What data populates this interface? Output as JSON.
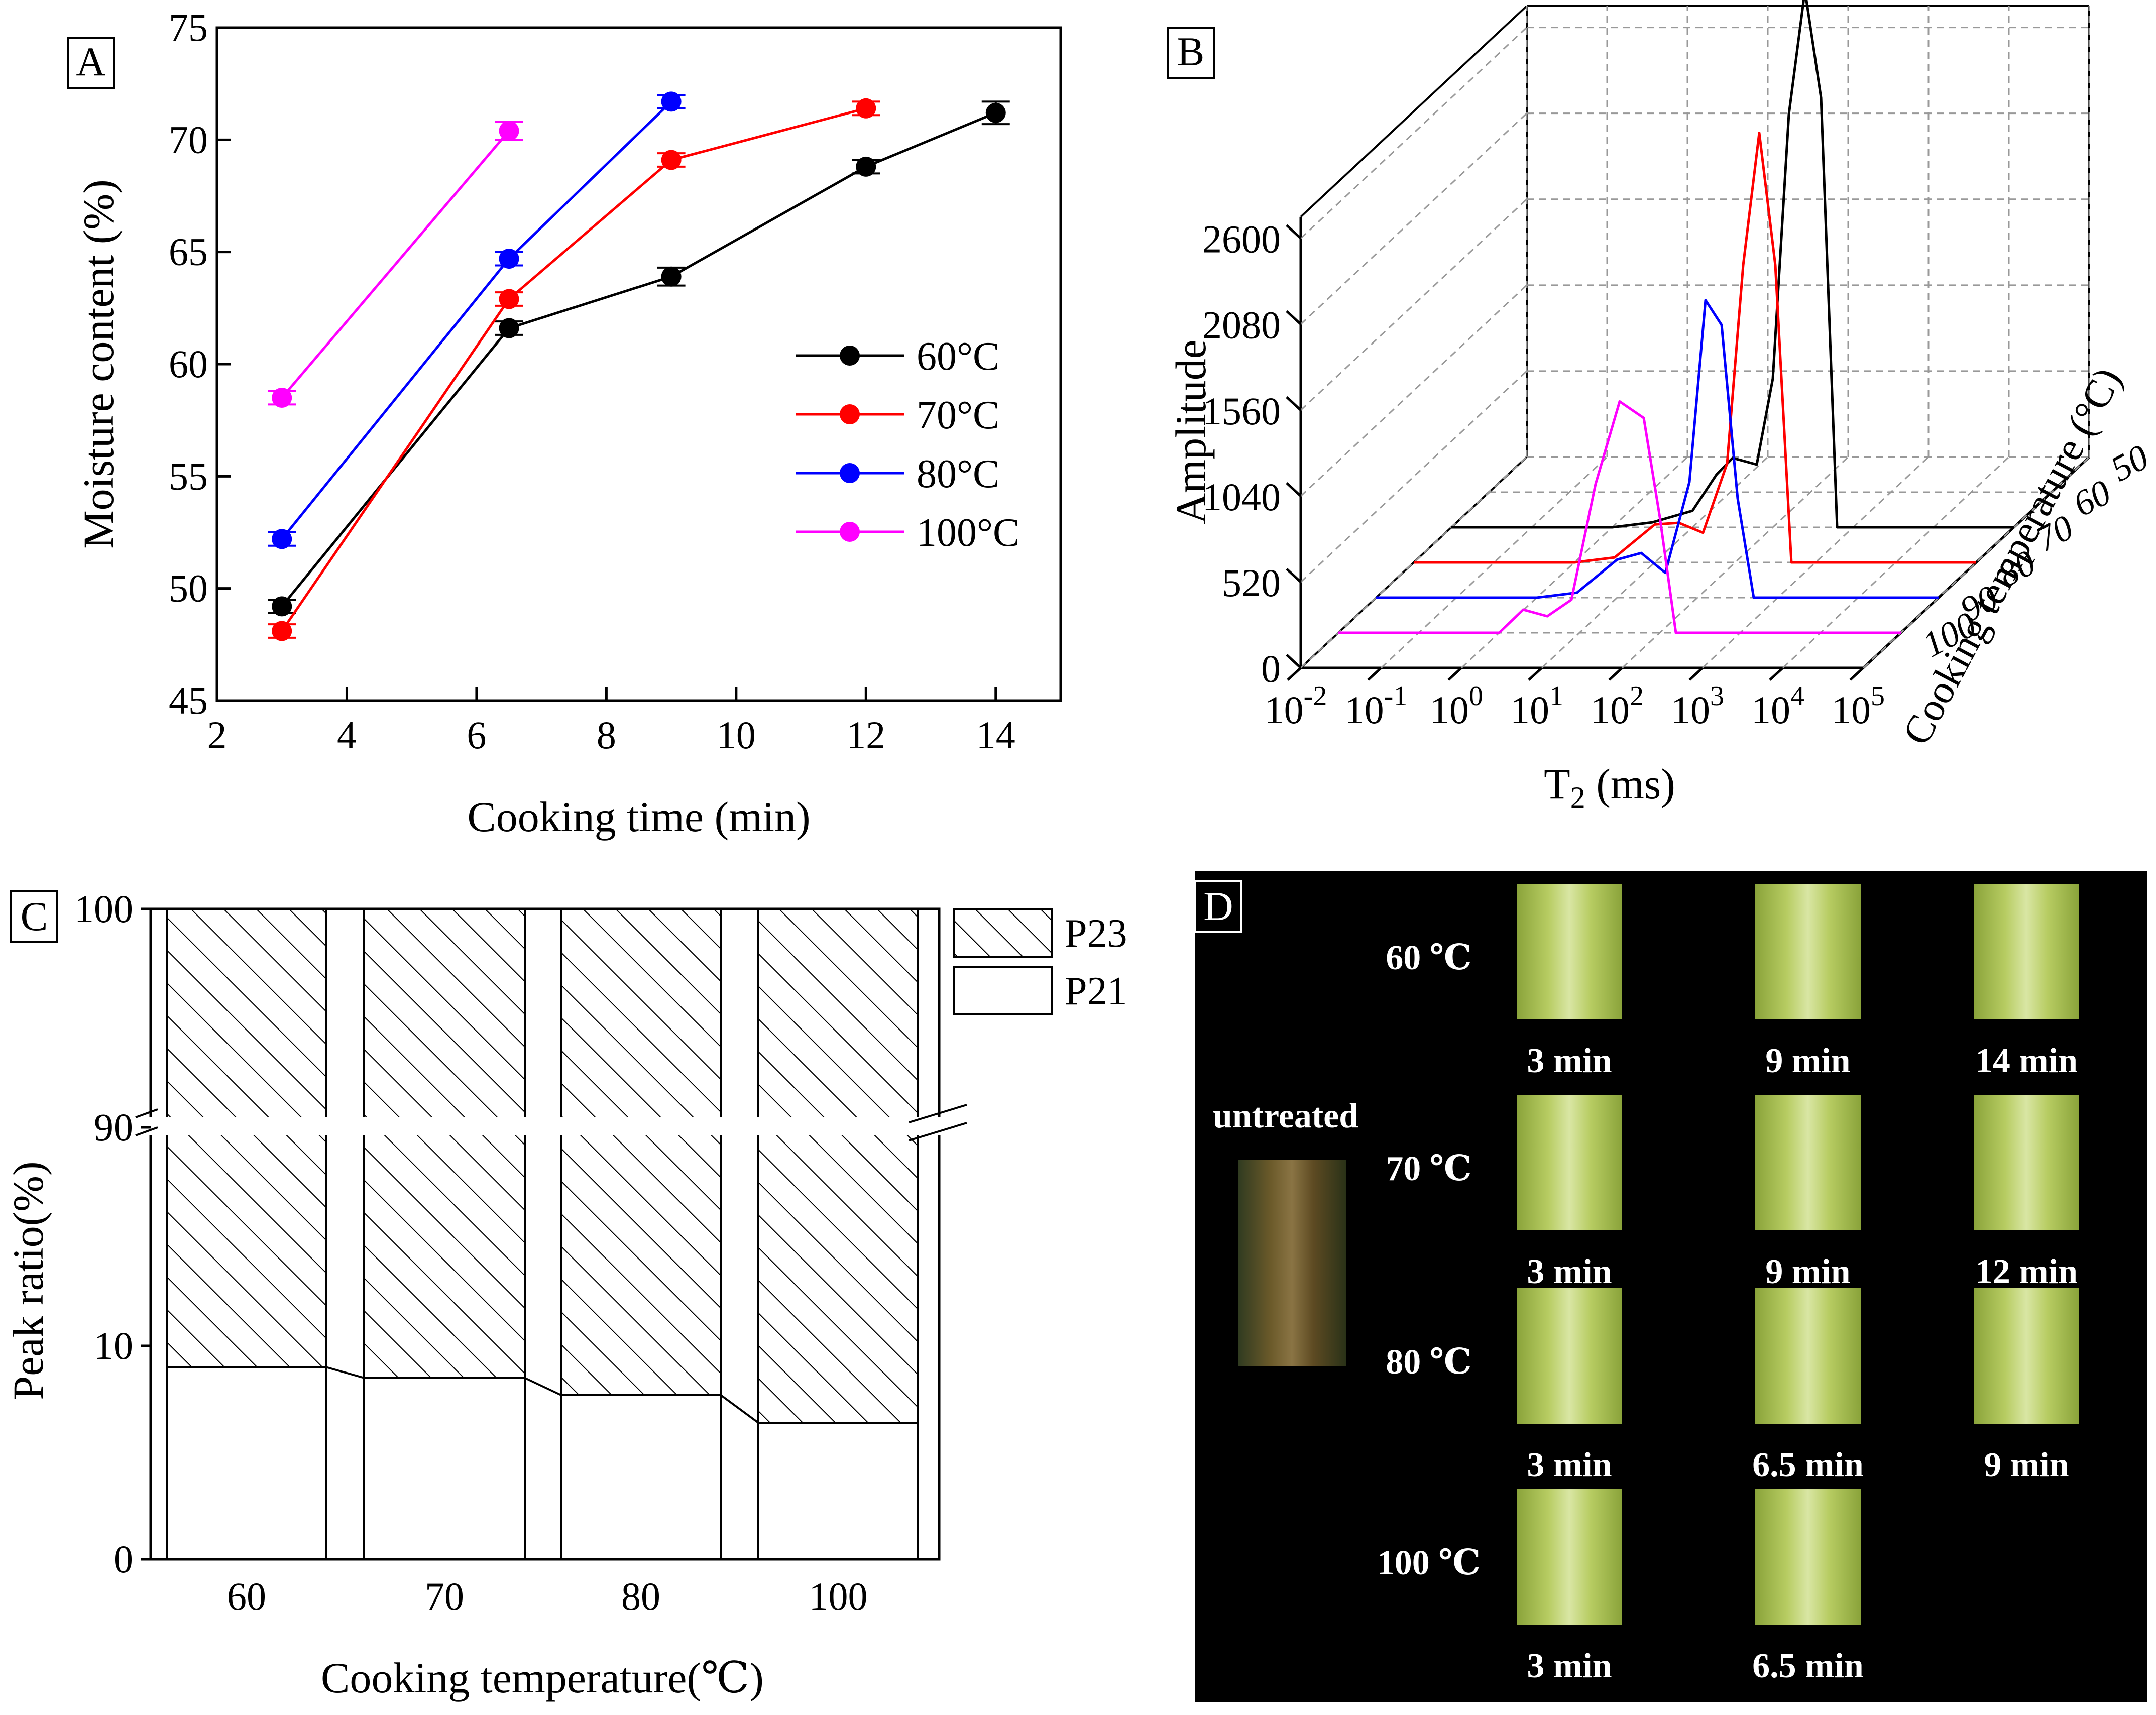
{
  "panels": {
    "A": "A",
    "B": "B",
    "C": "C",
    "D": "D"
  },
  "chart_data": [
    {
      "panel": "A",
      "type": "line",
      "xlabel": "Cooking time (min)",
      "ylabel": "Moisture content  (%)",
      "xlim": [
        2,
        15
      ],
      "ylim": [
        45,
        75
      ],
      "xticks": [
        "2",
        "4",
        "6",
        "8",
        "10",
        "12",
        "14"
      ],
      "yticks": [
        "45",
        "50",
        "55",
        "60",
        "65",
        "70",
        "75"
      ],
      "legend_position": "right-middle",
      "series": [
        {
          "name": "60°C",
          "color": "#000000",
          "x": [
            3,
            6.5,
            9,
            12,
            14
          ],
          "y": [
            49.2,
            61.6,
            63.9,
            68.8,
            71.2
          ],
          "err": [
            0.3,
            0.3,
            0.4,
            0.3,
            0.5
          ]
        },
        {
          "name": "70°C",
          "color": "#ff0000",
          "x": [
            3,
            6.5,
            9,
            12
          ],
          "y": [
            48.1,
            62.9,
            69.1,
            71.4
          ],
          "err": [
            0.3,
            0.3,
            0.3,
            0.3
          ]
        },
        {
          "name": "80°C",
          "color": "#0000ff",
          "x": [
            3,
            6.5,
            9
          ],
          "y": [
            52.2,
            64.7,
            71.7
          ],
          "err": [
            0.3,
            0.3,
            0.3
          ]
        },
        {
          "name": "100°C",
          "color": "#ff00ff",
          "x": [
            3,
            6.5
          ],
          "y": [
            58.5,
            70.4
          ],
          "err": [
            0.3,
            0.4
          ]
        }
      ]
    },
    {
      "panel": "B",
      "type": "line",
      "xlabel_main": "T",
      "xlabel_sub": "2",
      "xlabel_tail": " (ms)",
      "ylabel": "Amplitude",
      "zlabel": "Cooking temperature (°C)",
      "log_x": true,
      "xtick_exponents": [
        "-2",
        "-1",
        "0",
        "1",
        "2",
        "3",
        "4",
        "5"
      ],
      "yticks": [
        "0",
        "520",
        "1040",
        "1560",
        "2080",
        "2600"
      ],
      "zticks": [
        "50",
        "60",
        "70",
        "80",
        "90",
        "100"
      ],
      "series": [
        {
          "name": "60",
          "color": "#000000",
          "log_t2": [
            -2,
            -1,
            0,
            0.5,
            1,
            1.3,
            1.5,
            1.8,
            2,
            2.2,
            2.4,
            2.6,
            2.8,
            3,
            4,
            5
          ],
          "amplitude": [
            0,
            0,
            0,
            30,
            100,
            320,
            420,
            380,
            900,
            2500,
            3250,
            2600,
            0,
            0,
            0,
            0
          ]
        },
        {
          "name": "70",
          "color": "#ff0000",
          "log_t2": [
            -2,
            -1,
            0,
            0.5,
            1,
            1.3,
            1.6,
            1.9,
            2.1,
            2.3,
            2.5,
            2.7,
            3,
            4,
            5
          ],
          "amplitude": [
            0,
            0,
            0,
            30,
            230,
            240,
            180,
            600,
            1800,
            2600,
            1800,
            0,
            0,
            0,
            0
          ]
        },
        {
          "name": "80",
          "color": "#0000ff",
          "log_t2": [
            -2,
            -1,
            0,
            0.5,
            1,
            1.3,
            1.6,
            1.9,
            2.1,
            2.3,
            2.5,
            2.7,
            3,
            4,
            5
          ],
          "amplitude": [
            0,
            0,
            0,
            30,
            230,
            270,
            150,
            700,
            1800,
            1650,
            600,
            0,
            0,
            0,
            0
          ]
        },
        {
          "name": "100",
          "color": "#ff00ff",
          "log_t2": [
            -2,
            -1,
            0,
            0.3,
            0.6,
            0.9,
            1.2,
            1.5,
            1.8,
            2,
            2.2,
            2.4,
            3,
            4,
            5
          ],
          "amplitude": [
            0,
            0,
            0,
            140,
            100,
            200,
            900,
            1400,
            1300,
            700,
            0,
            0,
            0,
            0,
            0
          ]
        }
      ]
    },
    {
      "panel": "C",
      "type": "bar",
      "stacked": true,
      "xlabel": "Cooking temperature(℃)",
      "ylabel": "Peak ratio(%)",
      "categories": [
        "60",
        "70",
        "80",
        "100"
      ],
      "ytick_labels": [
        "0",
        "10",
        "90",
        "100"
      ],
      "axis_break": [
        10,
        90
      ],
      "series": [
        {
          "name": "P21",
          "values": [
            9.0,
            8.5,
            7.7,
            6.4
          ]
        },
        {
          "name": "P23",
          "values": [
            91.0,
            91.5,
            92.3,
            93.6
          ]
        }
      ]
    }
  ],
  "panel_d": {
    "untreated": "untreated",
    "rows": [
      {
        "temp": "60 ℃",
        "times": [
          "3 min",
          "9 min",
          "14 min"
        ]
      },
      {
        "temp": "70 ℃",
        "times": [
          "3 min",
          "9 min",
          "12 min"
        ]
      },
      {
        "temp": "80 ℃",
        "times": [
          "3 min",
          "6.5 min",
          "9 min"
        ]
      },
      {
        "temp": "100 ℃",
        "times": [
          "3 min",
          "6.5 min"
        ]
      }
    ]
  }
}
